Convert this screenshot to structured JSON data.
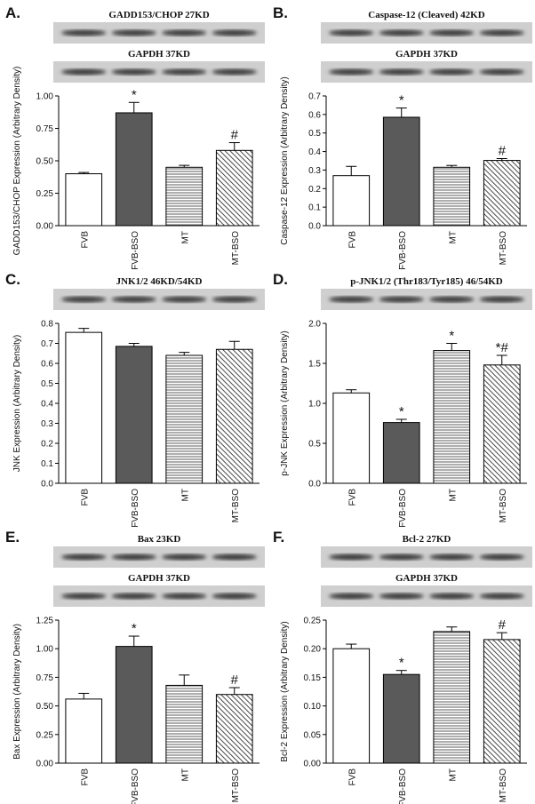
{
  "chart_data": [
    {
      "type": "bar",
      "label": "A.",
      "blots": [
        "GADD153/CHOP 27KD",
        "GAPDH 37KD"
      ],
      "y_label": "GADD153/CHOP Expression (Arbitrary Density)",
      "categories": [
        "FVB",
        "FVB-BSO",
        "MT",
        "MT-BSO"
      ],
      "values": [
        0.4,
        0.87,
        0.45,
        0.58
      ],
      "errors": [
        0.01,
        0.08,
        0.015,
        0.06
      ],
      "colors": [
        "#ffffff",
        "#5a5a5a",
        "#ffffff",
        "#ffffff"
      ],
      "hatches": [
        "none",
        "none",
        "horizontal",
        "diagonal"
      ],
      "annotations": [
        null,
        "*",
        null,
        "#"
      ],
      "ylim": [
        0,
        1.0
      ],
      "yticks": [
        {
          "value": 0,
          "label": "0.00"
        },
        0.25,
        {
          "value": 0.5,
          "label": "0.50"
        },
        0.75,
        {
          "value": 1,
          "label": "1.00"
        }
      ]
    },
    {
      "type": "bar",
      "label": "B.",
      "blots": [
        "Caspase-12 (Cleaved) 42KD",
        "GAPDH 37KD"
      ],
      "y_label": "Caspase-12 Expression (Arbitrary Density)",
      "categories": [
        "FVB",
        "FVB-BSO",
        "MT",
        "MT-BSO"
      ],
      "values": [
        0.27,
        0.585,
        0.315,
        0.352
      ],
      "errors": [
        0.05,
        0.05,
        0.01,
        0.01
      ],
      "colors": [
        "#ffffff",
        "#5a5a5a",
        "#ffffff",
        "#ffffff"
      ],
      "hatches": [
        "none",
        "none",
        "horizontal",
        "diagonal"
      ],
      "annotations": [
        null,
        "*",
        null,
        "#"
      ],
      "ylim": [
        0,
        0.7
      ],
      "yticks": [
        {
          "value": 0,
          "label": "0.0"
        },
        0.1,
        0.2,
        0.3,
        0.4,
        0.5,
        0.6,
        0.7
      ]
    },
    {
      "type": "bar",
      "label": "C.",
      "blots": [
        "JNK1/2  46KD/54KD"
      ],
      "y_label": "JNK Expression (Arbitrary Density)",
      "categories": [
        "FVB",
        "FVB-BSO",
        "MT",
        "MT-BSO"
      ],
      "values": [
        0.755,
        0.685,
        0.64,
        0.67
      ],
      "errors": [
        0.02,
        0.015,
        0.015,
        0.04
      ],
      "colors": [
        "#ffffff",
        "#5a5a5a",
        "#ffffff",
        "#ffffff"
      ],
      "hatches": [
        "none",
        "none",
        "horizontal",
        "diagonal"
      ],
      "annotations": [
        null,
        null,
        null,
        null
      ],
      "ylim": [
        0,
        0.8
      ],
      "yticks": [
        {
          "value": 0,
          "label": "0.0"
        },
        0.1,
        0.2,
        0.3,
        0.4,
        0.5,
        0.6,
        0.7,
        0.8
      ]
    },
    {
      "type": "bar",
      "label": "D.",
      "blots": [
        "p-JNK1/2 (Thr183/Tyr185) 46/54KD"
      ],
      "y_label": "p-JNK Expression (Arbitrary Density)",
      "categories": [
        "FVB",
        "FVB-BSO",
        "MT",
        "MT-BSO"
      ],
      "values": [
        1.13,
        0.76,
        1.66,
        1.48
      ],
      "errors": [
        0.04,
        0.04,
        0.09,
        0.12
      ],
      "colors": [
        "#ffffff",
        "#5a5a5a",
        "#ffffff",
        "#ffffff"
      ],
      "hatches": [
        "none",
        "none",
        "horizontal",
        "diagonal"
      ],
      "annotations": [
        null,
        "*",
        "*",
        "*#"
      ],
      "ylim": [
        0,
        2.0
      ],
      "yticks": [
        {
          "value": 0,
          "label": "0.0"
        },
        0.5,
        {
          "value": 1,
          "label": "1.0"
        },
        1.5,
        {
          "value": 2,
          "label": "2.0"
        }
      ]
    },
    {
      "type": "bar",
      "label": "E.",
      "blots": [
        "Bax 23KD",
        "GAPDH 37KD"
      ],
      "y_label": "Bax Expression (Arbitrary Density)",
      "categories": [
        "FVB",
        "FVB-BSO",
        "MT",
        "MT-BSO"
      ],
      "values": [
        0.56,
        1.02,
        0.68,
        0.6
      ],
      "errors": [
        0.05,
        0.09,
        0.09,
        0.06
      ],
      "colors": [
        "#ffffff",
        "#5a5a5a",
        "#ffffff",
        "#ffffff"
      ],
      "hatches": [
        "none",
        "none",
        "horizontal",
        "diagonal"
      ],
      "annotations": [
        null,
        "*",
        null,
        "#"
      ],
      "ylim": [
        0,
        1.25
      ],
      "yticks": [
        {
          "value": 0,
          "label": "0.00"
        },
        0.25,
        {
          "value": 0.5,
          "label": "0.50"
        },
        0.75,
        {
          "value": 1,
          "label": "1.00"
        },
        1.25
      ]
    },
    {
      "type": "bar",
      "label": "F.",
      "blots": [
        "Bcl-2 27KD",
        "GAPDH 37KD"
      ],
      "y_label": "Bcl-2 Expression (Arbitrary Density)",
      "categories": [
        "FVB",
        "FVB-BSO",
        "MT",
        "MT-BSO"
      ],
      "values": [
        0.2,
        0.155,
        0.23,
        0.216
      ],
      "errors": [
        0.008,
        0.007,
        0.008,
        0.012
      ],
      "colors": [
        "#ffffff",
        "#5a5a5a",
        "#ffffff",
        "#ffffff"
      ],
      "hatches": [
        "none",
        "none",
        "horizontal",
        "diagonal"
      ],
      "annotations": [
        null,
        "*",
        null,
        "#"
      ],
      "ylim": [
        0,
        0.25
      ],
      "yticks": [
        {
          "value": 0,
          "label": "0.00"
        },
        0.05,
        {
          "value": 0.1,
          "label": "0.10"
        },
        0.15,
        {
          "value": 0.2,
          "label": "0.20"
        },
        0.25
      ]
    }
  ]
}
